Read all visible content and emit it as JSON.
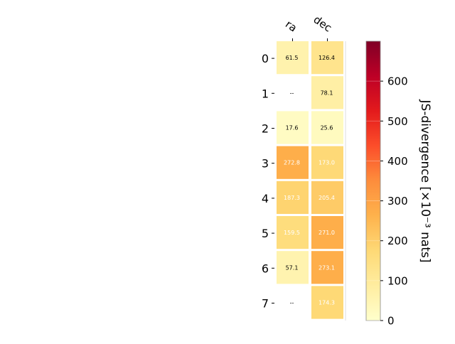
{
  "chart_data": {
    "type": "heatmap",
    "columns": [
      "ra",
      "dec"
    ],
    "rows": [
      "0",
      "1",
      "2",
      "3",
      "4",
      "5",
      "6",
      "7"
    ],
    "values": [
      [
        61.5,
        126.4
      ],
      [
        null,
        78.1
      ],
      [
        17.6,
        25.6
      ],
      [
        272.8,
        173.0
      ],
      [
        187.3,
        205.4
      ],
      [
        159.5,
        271.0
      ],
      [
        57.1,
        273.1
      ],
      [
        null,
        174.3
      ]
    ],
    "cell_labels": [
      [
        "61.5",
        "126.4"
      ],
      [
        "--",
        "78.1"
      ],
      [
        "17.6",
        "25.6"
      ],
      [
        "272.8",
        "173.0"
      ],
      [
        "187.3",
        "205.4"
      ],
      [
        "159.5",
        "271.0"
      ],
      [
        "57.1",
        "273.1"
      ],
      [
        "--",
        "174.3"
      ]
    ],
    "colorbar": {
      "label": "JS-divergence [×10⁻³ nats]",
      "range": [
        0,
        700
      ],
      "ticks": [
        0,
        100,
        200,
        300,
        400,
        500,
        600
      ],
      "tick_labels": [
        "0",
        "100",
        "200",
        "300",
        "400",
        "500",
        "600"
      ],
      "colormap": "YlOrRd"
    },
    "missing_marker": "--"
  }
}
